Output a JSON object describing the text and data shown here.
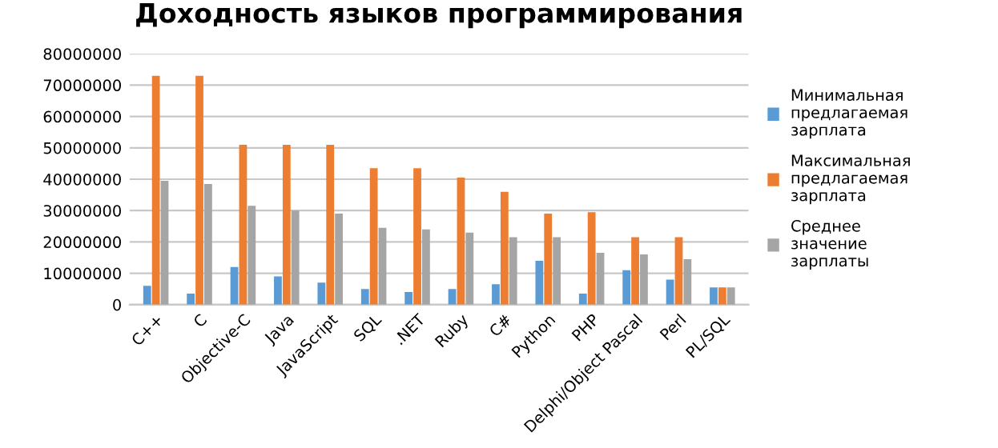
{
  "chart_data": {
    "type": "bar",
    "title": "Доходность языков программирования",
    "categories": [
      "C++",
      "C",
      "Objective-C",
      "Java",
      "JavaScript",
      "SQL",
      ".NET",
      "Ruby",
      "C#",
      "Python",
      "PHP",
      "Delphi/Object Pascal",
      "Perl",
      "PL/SQL"
    ],
    "series": [
      {
        "name": "Минимальная предлагаемая зарплата",
        "color": "#5b9bd5",
        "values": [
          6000000,
          3500000,
          12000000,
          9000000,
          7000000,
          5000000,
          4000000,
          5000000,
          6500000,
          14000000,
          3500000,
          11000000,
          8000000,
          5500000
        ]
      },
      {
        "name": "Максимальная предлагаемая зарплата",
        "color": "#ed7d31",
        "values": [
          73000000,
          73000000,
          51000000,
          51000000,
          51000000,
          43500000,
          43500000,
          40500000,
          36000000,
          29000000,
          29500000,
          21500000,
          21500000,
          5500000
        ]
      },
      {
        "name": "Среднее значение зарплаты",
        "color": "#a5a5a5",
        "values": [
          39500000,
          38500000,
          31500000,
          30000000,
          29000000,
          24500000,
          24000000,
          23000000,
          21500000,
          21500000,
          16500000,
          16000000,
          14500000,
          5500000
        ]
      }
    ],
    "ylim": [
      0,
      80000000
    ],
    "yticks": [
      0,
      10000000,
      20000000,
      30000000,
      40000000,
      50000000,
      60000000,
      70000000,
      80000000
    ],
    "grid": "y",
    "legend": "right"
  }
}
